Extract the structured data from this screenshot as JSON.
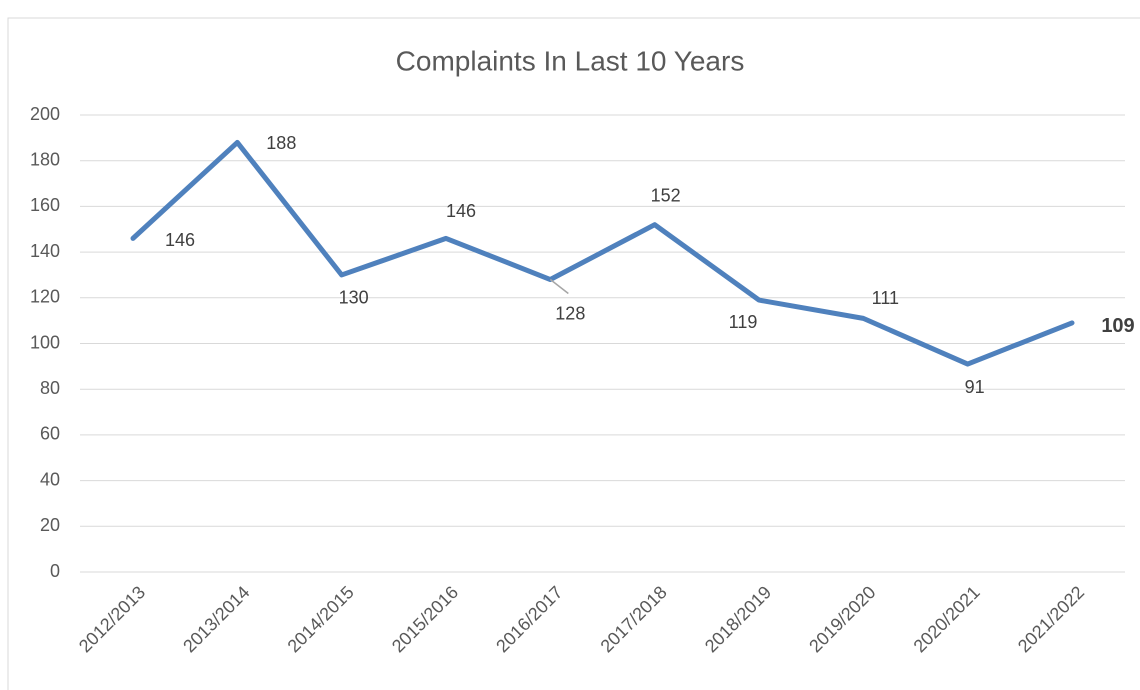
{
  "chart_data": {
    "type": "line",
    "title": "Complaints In Last 10 Years",
    "categories": [
      "2012/2013",
      "2013/2014",
      "2014/2015",
      "2015/2016",
      "2016/2017",
      "2017/2018",
      "2018/2019",
      "2019/2020",
      "2020/2021",
      "2021/2022"
    ],
    "values": [
      146,
      188,
      130,
      146,
      128,
      152,
      119,
      111,
      91,
      109
    ],
    "color": "#4f81bd",
    "ylim": [
      0,
      200
    ],
    "yticks": [
      0,
      20,
      40,
      60,
      80,
      100,
      120,
      140,
      160,
      180,
      200
    ],
    "grid": true
  }
}
